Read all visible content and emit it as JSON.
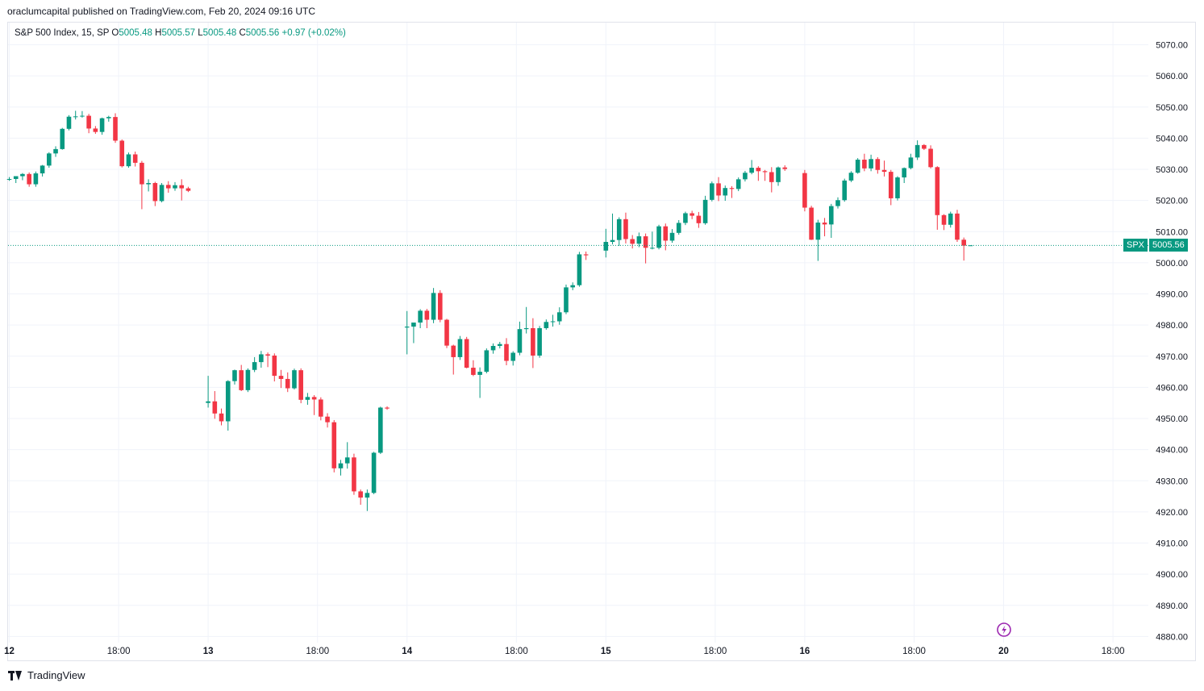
{
  "header": {
    "published": "oraclumcapital published on TradingView.com, Feb 20, 2024 09:16 UTC"
  },
  "legend": {
    "name": "S&P 500 Index, 15, SP",
    "o_label": "O",
    "o_value": "5005.48",
    "h_label": "H",
    "h_value": "5005.57",
    "l_label": "L",
    "l_value": "5005.48",
    "c_label": "C",
    "c_value": "5005.56",
    "change": "+0.97 (+0.02%)"
  },
  "price_tag": {
    "symbol": "SPX",
    "value": "5005.56"
  },
  "footer": {
    "brand": "TradingView"
  },
  "colors": {
    "up": "#089981",
    "down": "#f23645",
    "grid": "#f0f3fa",
    "accent": "#9c27b0"
  },
  "icons": {
    "lightning": "lightning-icon",
    "logo": "tradingview-logo-icon"
  },
  "chart_data": {
    "type": "candlestick",
    "symbol": "SPX",
    "timeframe": "15",
    "ylim": [
      4877,
      5074
    ],
    "yticks": [
      5070,
      5060,
      5050,
      5040,
      5030,
      5020,
      5010,
      5000,
      4990,
      4980,
      4970,
      4960,
      4950,
      4940,
      4930,
      4920,
      4910,
      4900,
      4890,
      4880
    ],
    "ytick_labels": [
      "5070.00",
      "5060.00",
      "5050.00",
      "5040.00",
      "5030.00",
      "5020.00",
      "5010.00",
      "5000.00",
      "4990.00",
      "4980.00",
      "4970.00",
      "4960.00",
      "4950.00",
      "4940.00",
      "4930.00",
      "4920.00",
      "4910.00",
      "4900.00",
      "4890.00",
      "4880.00"
    ],
    "xticks": [
      {
        "label": "12",
        "bar": 0,
        "bold": true
      },
      {
        "label": "18:00",
        "bar": 16.5
      },
      {
        "label": "13",
        "bar": 30,
        "bold": true
      },
      {
        "label": "18:00",
        "bar": 46.5
      },
      {
        "label": "14",
        "bar": 60,
        "bold": true
      },
      {
        "label": "18:00",
        "bar": 76.5
      },
      {
        "label": "15",
        "bar": 90,
        "bold": true
      },
      {
        "label": "18:00",
        "bar": 106.5
      },
      {
        "label": "16",
        "bar": 120,
        "bold": true
      },
      {
        "label": "18:00",
        "bar": 136.5
      },
      {
        "label": "20",
        "bar": 150,
        "bold": true
      },
      {
        "label": "18:00",
        "bar": 166.5
      }
    ],
    "last_price": 5005.56,
    "grid": true,
    "sessions": [
      {
        "label": "12",
        "start_bar": 0,
        "ohlc": [
          [
            5026.7,
            5027.5,
            5026.3,
            5026.9
          ],
          [
            5026.9,
            5027.8,
            5025.6,
            5027.8
          ],
          [
            5027.8,
            5028.8,
            5026.5,
            5028.5
          ],
          [
            5028.5,
            5029.0,
            5024.4,
            5025.2
          ],
          [
            5025.2,
            5029.3,
            5024.4,
            5028.7
          ],
          [
            5028.7,
            5031.4,
            5027.7,
            5031.2
          ],
          [
            5031.2,
            5035.5,
            5030.5,
            5035.1
          ],
          [
            5035.1,
            5037.4,
            5034.0,
            5036.5
          ],
          [
            5036.5,
            5043.3,
            5036.3,
            5043.0
          ],
          [
            5043.0,
            5047.4,
            5042.5,
            5046.9
          ],
          [
            5046.9,
            5048.8,
            5046.0,
            5047.0
          ],
          [
            5047.0,
            5048.7,
            5046.6,
            5047.2
          ],
          [
            5047.2,
            5047.8,
            5041.6,
            5043.1
          ],
          [
            5043.1,
            5043.9,
            5041.4,
            5042.0
          ],
          [
            5042.0,
            5046.6,
            5041.1,
            5046.4
          ],
          [
            5046.4,
            5047.2,
            5045.3,
            5046.8
          ],
          [
            5046.8,
            5048.0,
            5038.5,
            5039.2
          ],
          [
            5039.2,
            5039.6,
            5030.6,
            5031.0
          ],
          [
            5031.0,
            5035.4,
            5030.5,
            5034.8
          ],
          [
            5034.8,
            5035.7,
            5030.9,
            5032.1
          ],
          [
            5032.1,
            5032.7,
            5017.2,
            5025.2
          ],
          [
            5025.2,
            5026.8,
            5022.9,
            5025.6
          ],
          [
            5025.6,
            5026.0,
            5018.2,
            5019.8
          ],
          [
            5019.8,
            5025.6,
            5019.4,
            5025.0
          ],
          [
            5025.0,
            5026.2,
            5022.5,
            5023.9
          ],
          [
            5023.9,
            5025.9,
            5023.1,
            5024.9
          ],
          [
            5024.9,
            5026.8,
            5020.0,
            5023.9
          ],
          [
            5023.9,
            5024.4,
            5022.7,
            5023.1
          ]
        ]
      },
      {
        "label": "13",
        "start_bar": 30,
        "ohlc": [
          [
            4955.0,
            4963.7,
            4953.5,
            4955.5
          ],
          [
            4955.5,
            4958.8,
            4949.9,
            4951.6
          ],
          [
            4951.6,
            4953.2,
            4947.8,
            4949.1
          ],
          [
            4949.1,
            4962.3,
            4946.1,
            4962.0
          ],
          [
            4962.0,
            4965.7,
            4960.9,
            4965.5
          ],
          [
            4965.5,
            4967.2,
            4958.8,
            4959.1
          ],
          [
            4959.1,
            4966.1,
            4958.5,
            4965.6
          ],
          [
            4965.6,
            4969.7,
            4964.9,
            4968.1
          ],
          [
            4968.1,
            4971.7,
            4966.3,
            4970.6
          ],
          [
            4970.6,
            4971.2,
            4966.5,
            4970.2
          ],
          [
            4970.2,
            4970.9,
            4961.9,
            4963.7
          ],
          [
            4963.7,
            4965.6,
            4959.8,
            4962.7
          ],
          [
            4962.7,
            4964.8,
            4958.5,
            4959.7
          ],
          [
            4959.7,
            4966.0,
            4959.3,
            4965.5
          ],
          [
            4965.5,
            4966.1,
            4954.9,
            4956.0
          ],
          [
            4956.0,
            4958.2,
            4954.4,
            4956.9
          ],
          [
            4956.9,
            4957.5,
            4951.1,
            4956.1
          ],
          [
            4956.1,
            4956.8,
            4949.4,
            4950.6
          ],
          [
            4950.6,
            4951.7,
            4947.1,
            4948.8
          ],
          [
            4948.8,
            4949.5,
            4932.7,
            4934.0
          ],
          [
            4934.0,
            4936.7,
            4931.7,
            4935.6
          ],
          [
            4935.6,
            4942.4,
            4933.9,
            4937.5
          ],
          [
            4937.5,
            4938.7,
            4925.5,
            4926.6
          ],
          [
            4926.6,
            4927.2,
            4922.3,
            4924.6
          ],
          [
            4924.6,
            4927.2,
            4920.3,
            4926.1
          ],
          [
            4926.1,
            4939.3,
            4925.7,
            4939.0
          ],
          [
            4939.0,
            4953.8,
            4938.6,
            4953.5
          ],
          [
            4953.5,
            4953.9,
            4952.8,
            4953.2
          ]
        ]
      },
      {
        "label": "14",
        "start_bar": 60,
        "ohlc": [
          [
            4979.2,
            4984.5,
            4970.6,
            4979.5
          ],
          [
            4979.5,
            4980.5,
            4974.2,
            4980.8
          ],
          [
            4980.8,
            4985.1,
            4979.0,
            4984.6
          ],
          [
            4984.6,
            4985.2,
            4979.0,
            4981.7
          ],
          [
            4981.7,
            4991.9,
            4980.6,
            4990.3
          ],
          [
            4990.3,
            4991.2,
            4980.9,
            4981.7
          ],
          [
            4981.7,
            4982.0,
            4972.6,
            4973.4
          ],
          [
            4973.4,
            4973.7,
            4964.1,
            4969.7
          ],
          [
            4969.7,
            4976.5,
            4968.8,
            4975.5
          ],
          [
            4975.5,
            4976.2,
            4966.1,
            4966.3
          ],
          [
            4966.3,
            4968.7,
            4963.6,
            4964.0
          ],
          [
            4964.0,
            4966.4,
            4956.6,
            4965.0
          ],
          [
            4965.0,
            4972.5,
            4964.5,
            4971.9
          ],
          [
            4971.9,
            4974.1,
            4970.8,
            4973.3
          ],
          [
            4973.3,
            4974.6,
            4972.5,
            4973.9
          ],
          [
            4973.9,
            4975.8,
            4967.1,
            4968.5
          ],
          [
            4968.5,
            4971.6,
            4967.0,
            4971.1
          ],
          [
            4971.1,
            4981.1,
            4970.3,
            4978.7
          ],
          [
            4978.7,
            4985.8,
            4977.3,
            4979.0
          ],
          [
            4979.0,
            4982.2,
            4966.2,
            4970.2
          ],
          [
            4970.2,
            4979.7,
            4969.5,
            4979.0
          ],
          [
            4979.0,
            4981.8,
            4978.5,
            4981.0
          ],
          [
            4981.0,
            4983.3,
            4979.5,
            4981.2
          ],
          [
            4981.2,
            4985.7,
            4980.1,
            4984.1
          ],
          [
            4984.1,
            4993.0,
            4983.5,
            4992.1
          ],
          [
            4992.1,
            4993.7,
            4991.2,
            4992.8
          ],
          [
            4992.8,
            5003.5,
            4992.3,
            5002.7
          ],
          [
            5002.7,
            5003.6,
            5000.9,
            5002.4
          ]
        ]
      },
      {
        "label": "15",
        "start_bar": 90,
        "ohlc": [
          [
            5003.9,
            5010.9,
            5001.7,
            5006.7
          ],
          [
            5006.7,
            5015.8,
            5005.9,
            5007.3
          ],
          [
            5007.3,
            5014.6,
            5005.4,
            5014.0
          ],
          [
            5014.0,
            5016.1,
            5006.2,
            5007.6
          ],
          [
            5007.6,
            5008.9,
            5004.6,
            5006.1
          ],
          [
            5006.1,
            5009.7,
            5005.0,
            5008.5
          ],
          [
            5008.5,
            5009.4,
            4999.8,
            5004.8
          ],
          [
            5004.8,
            5010.0,
            5004.3,
            5004.8
          ],
          [
            5004.8,
            5012.2,
            5004.3,
            5011.7
          ],
          [
            5011.7,
            5012.6,
            5004.0,
            5007.1
          ],
          [
            5007.1,
            5010.8,
            5006.4,
            5009.6
          ],
          [
            5009.6,
            5013.7,
            5009.0,
            5012.8
          ],
          [
            5012.8,
            5016.4,
            5012.1,
            5015.9
          ],
          [
            5015.9,
            5016.7,
            5014.0,
            5015.1
          ],
          [
            5015.1,
            5016.3,
            5011.2,
            5012.7
          ],
          [
            5012.7,
            5021.5,
            5012.2,
            5020.2
          ],
          [
            5020.2,
            5026.1,
            5019.7,
            5025.5
          ],
          [
            5025.5,
            5027.5,
            5019.8,
            5021.6
          ],
          [
            5021.6,
            5024.8,
            5019.9,
            5024.0
          ],
          [
            5024.0,
            5024.6,
            5020.8,
            5023.7
          ],
          [
            5023.7,
            5027.4,
            5023.0,
            5026.8
          ],
          [
            5026.8,
            5029.5,
            5026.1,
            5028.9
          ],
          [
            5028.9,
            5033.0,
            5028.4,
            5030.5
          ],
          [
            5030.5,
            5031.0,
            5026.3,
            5029.4
          ],
          [
            5029.4,
            5029.8,
            5026.3,
            5029.1
          ],
          [
            5029.1,
            5030.7,
            5022.6,
            5025.9
          ],
          [
            5025.9,
            5030.9,
            5024.7,
            5030.6
          ],
          [
            5030.6,
            5031.3,
            5029.5,
            5030.1
          ]
        ]
      },
      {
        "label": "16",
        "start_bar": 120,
        "ohlc": [
          [
            5028.8,
            5029.8,
            5016.5,
            5017.7
          ],
          [
            5017.7,
            5018.3,
            5007.3,
            5007.4
          ],
          [
            5007.4,
            5013.8,
            5000.6,
            5012.9
          ],
          [
            5012.9,
            5014.4,
            5008.5,
            5012.3
          ],
          [
            5012.3,
            5018.9,
            5008.0,
            5018.2
          ],
          [
            5018.2,
            5021.0,
            5017.4,
            5020.1
          ],
          [
            5020.1,
            5027.0,
            5019.6,
            5026.4
          ],
          [
            5026.4,
            5029.4,
            5025.9,
            5028.9
          ],
          [
            5028.9,
            5033.6,
            5028.6,
            5033.1
          ],
          [
            5033.1,
            5035.0,
            5029.4,
            5030.3
          ],
          [
            5030.3,
            5034.7,
            5029.4,
            5033.3
          ],
          [
            5033.3,
            5033.9,
            5028.6,
            5029.8
          ],
          [
            5029.8,
            5032.8,
            5027.7,
            5029.2
          ],
          [
            5029.2,
            5029.8,
            5018.5,
            5020.7
          ],
          [
            5020.7,
            5027.8,
            5020.0,
            5027.4
          ],
          [
            5027.4,
            5030.6,
            5025.6,
            5030.4
          ],
          [
            5030.4,
            5035.0,
            5030.0,
            5033.8
          ],
          [
            5033.8,
            5039.3,
            5033.0,
            5037.8
          ],
          [
            5037.8,
            5038.1,
            5036.2,
            5036.6
          ],
          [
            5036.6,
            5037.7,
            5030.3,
            5030.7
          ],
          [
            5030.7,
            5031.0,
            5010.6,
            5015.3
          ],
          [
            5015.3,
            5015.6,
            5010.5,
            5012.2
          ],
          [
            5012.2,
            5016.4,
            5011.3,
            5015.8
          ],
          [
            5015.8,
            5017.0,
            5006.7,
            5007.4
          ],
          [
            5007.4,
            5008.1,
            5000.7,
            5005.5
          ],
          [
            5005.5,
            5005.6,
            5005.5,
            5005.6
          ]
        ]
      }
    ]
  }
}
